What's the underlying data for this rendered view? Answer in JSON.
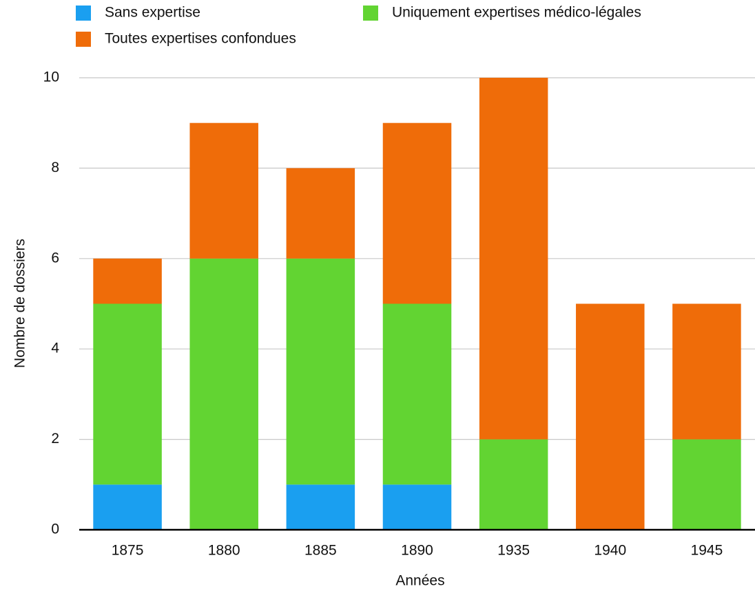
{
  "chart_data": {
    "type": "stacked_bar",
    "x_label": "Années",
    "y_label": "Nombre de dossiers",
    "categories": [
      "1875",
      "1880",
      "1885",
      "1890",
      "1935",
      "1940",
      "1945"
    ],
    "series": [
      {
        "name": "Sans expertise",
        "color": "#1a9ff0",
        "values": [
          1,
          0,
          1,
          1,
          0,
          0,
          0
        ]
      },
      {
        "name": "Uniquement expertises médico-légales",
        "color": "#62d432",
        "values": [
          4,
          6,
          5,
          4,
          2,
          0,
          2
        ]
      },
      {
        "name": "Toutes expertises confondues",
        "color": "#ef6c09",
        "values": [
          1,
          3,
          2,
          4,
          8,
          5,
          3
        ]
      }
    ],
    "ylim": [
      0,
      10
    ],
    "yticks": [
      0,
      2,
      4,
      6,
      8,
      10
    ],
    "grid": true
  }
}
